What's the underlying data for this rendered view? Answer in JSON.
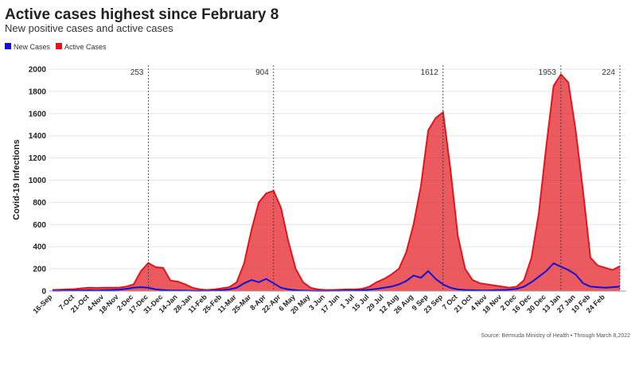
{
  "chart_data": {
    "type": "area",
    "title": "Active cases highest since February 8",
    "subtitle": "New positive cases and active cases",
    "y_label": "Covid-19 Infections",
    "source": "Source: Bermuda Ministry of Health • Through March 8,2022",
    "categories": [
      "16-Sep",
      null,
      null,
      "7-Oct",
      null,
      "21-Oct",
      null,
      "4-Nov",
      null,
      "18-Nov",
      null,
      "2-Dec",
      null,
      "17-Dec",
      null,
      "31-Dec",
      null,
      "14-Jan",
      null,
      "28-Jan",
      null,
      "11-Feb",
      null,
      "25-Feb",
      null,
      "11-Mar",
      null,
      "25-Mar",
      null,
      "8-Apr",
      null,
      "22-Apr",
      null,
      "6 May",
      null,
      "20 May",
      null,
      "3 Jun",
      null,
      "17 Jun",
      null,
      "1 Jul",
      null,
      "15 Jul",
      null,
      "29 Jul",
      null,
      "12 Aug",
      null,
      "26 Aug",
      null,
      "9 Sep",
      null,
      "23 Sep",
      null,
      "7 Oct",
      null,
      "21 Oct",
      null,
      "4 Nov",
      null,
      "18 Nov",
      null,
      "2 Dec",
      null,
      "16 Dec",
      null,
      "30 Dec",
      null,
      "13 Jan",
      null,
      "27 Jan",
      null,
      "10 Feb",
      null,
      "24 Feb",
      null,
      null
    ],
    "series": [
      {
        "name": "New Cases",
        "color": "#1010d8",
        "values": [
          3,
          3,
          4,
          5,
          6,
          8,
          6,
          8,
          10,
          12,
          20,
          30,
          35,
          30,
          15,
          10,
          6,
          5,
          4,
          3,
          2,
          3,
          4,
          8,
          15,
          30,
          70,
          100,
          80,
          110,
          70,
          30,
          15,
          8,
          4,
          3,
          2,
          2,
          3,
          3,
          4,
          5,
          8,
          12,
          20,
          30,
          40,
          60,
          90,
          140,
          120,
          180,
          110,
          60,
          30,
          15,
          10,
          8,
          6,
          5,
          8,
          10,
          12,
          20,
          40,
          80,
          130,
          180,
          250,
          220,
          190,
          150,
          70,
          40,
          35,
          30,
          35,
          40
        ]
      },
      {
        "name": "Active Cases",
        "color": "#e3141b",
        "values": [
          10,
          12,
          15,
          18,
          25,
          30,
          28,
          30,
          30,
          30,
          40,
          60,
          180,
          253,
          215,
          210,
          95,
          85,
          60,
          30,
          15,
          10,
          15,
          25,
          35,
          80,
          250,
          550,
          800,
          880,
          904,
          750,
          450,
          200,
          80,
          30,
          15,
          10,
          10,
          12,
          15,
          15,
          20,
          40,
          80,
          110,
          150,
          200,
          350,
          600,
          950,
          1450,
          1560,
          1612,
          1100,
          500,
          200,
          100,
          70,
          60,
          50,
          40,
          30,
          40,
          100,
          300,
          700,
          1300,
          1850,
          1953,
          1880,
          1450,
          900,
          300,
          230,
          210,
          190,
          224
        ]
      }
    ],
    "annotations": [
      253,
      904,
      1612,
      1953,
      224
    ],
    "ylim": [
      0,
      2000
    ],
    "yticks": [
      0,
      200,
      400,
      600,
      800,
      1000,
      1200,
      1400,
      1600,
      1800,
      2000
    ],
    "grid": true
  }
}
